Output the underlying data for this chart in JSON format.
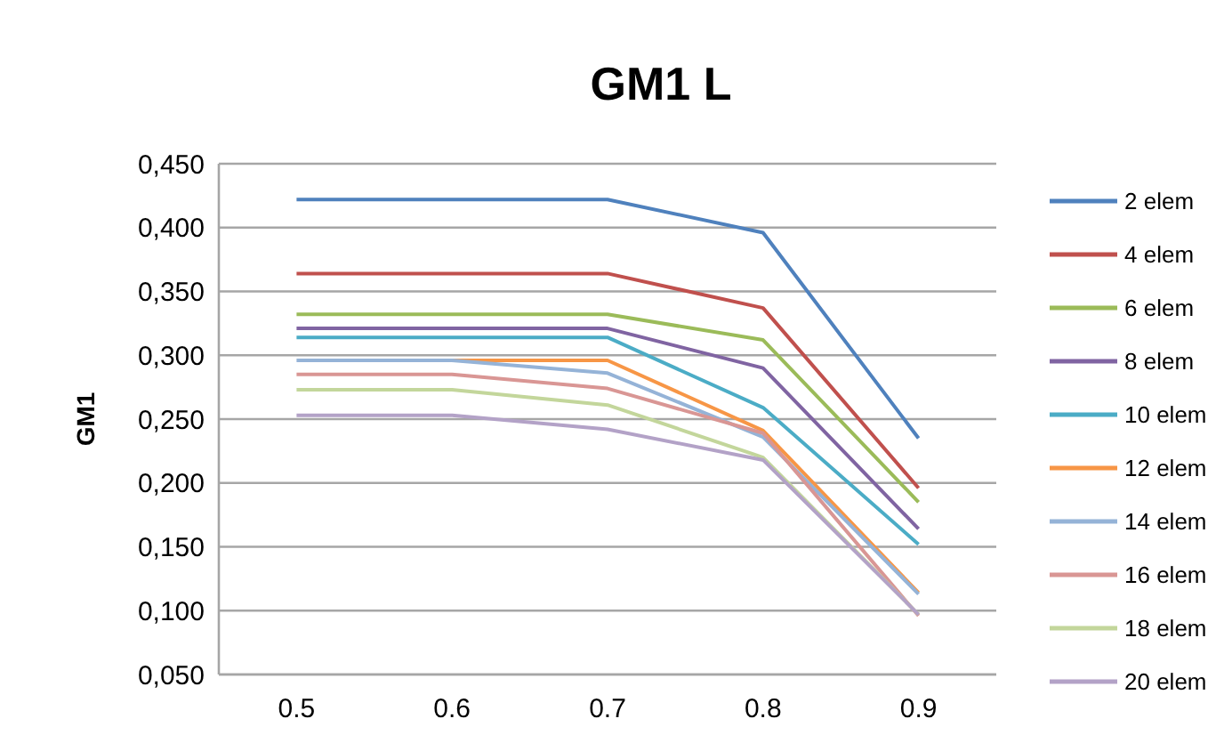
{
  "chart_data": {
    "type": "line",
    "title": "GM1 L",
    "ylabel": "GM1",
    "categories": [
      "0.5",
      "0.6",
      "0.7",
      "0.8",
      "0.9"
    ],
    "ylim": [
      0.05,
      0.45
    ],
    "yticks": [
      {
        "value": 0.05,
        "label": "0,050"
      },
      {
        "value": 0.1,
        "label": "0,100"
      },
      {
        "value": 0.15,
        "label": "0,150"
      },
      {
        "value": 0.2,
        "label": "0,200"
      },
      {
        "value": 0.25,
        "label": "0,250"
      },
      {
        "value": 0.3,
        "label": "0,300"
      },
      {
        "value": 0.35,
        "label": "0,350"
      },
      {
        "value": 0.4,
        "label": "0,400"
      },
      {
        "value": 0.45,
        "label": "0,450"
      }
    ],
    "grid": "y",
    "legend": "right",
    "marker": "none",
    "line_style": "solid",
    "series": [
      {
        "name": "2 elem",
        "color": "#4f81bd",
        "values": [
          0.422,
          0.422,
          0.422,
          0.396,
          0.235
        ]
      },
      {
        "name": "4 elem",
        "color": "#c0504d",
        "values": [
          0.364,
          0.364,
          0.364,
          0.337,
          0.196
        ]
      },
      {
        "name": "6 elem",
        "color": "#9bbb59",
        "values": [
          0.332,
          0.332,
          0.332,
          0.312,
          0.185
        ]
      },
      {
        "name": "8 elem",
        "color": "#8064a2",
        "values": [
          0.321,
          0.321,
          0.321,
          0.29,
          0.164
        ]
      },
      {
        "name": "10 elem",
        "color": "#4bacc6",
        "values": [
          0.314,
          0.314,
          0.314,
          0.259,
          0.152
        ]
      },
      {
        "name": "12 elem",
        "color": "#f79646",
        "values": [
          null,
          0.296,
          0.296,
          0.241,
          0.114
        ]
      },
      {
        "name": "14 elem",
        "color": "#95b3d7",
        "values": [
          0.296,
          0.296,
          0.286,
          0.236,
          0.113
        ]
      },
      {
        "name": "16 elem",
        "color": "#d99694",
        "values": [
          0.285,
          0.285,
          0.274,
          0.239,
          0.096
        ]
      },
      {
        "name": "18 elem",
        "color": "#c3d69b",
        "values": [
          0.273,
          0.273,
          0.261,
          0.22,
          0.097
        ]
      },
      {
        "name": "20 elem",
        "color": "#b3a2c7",
        "values": [
          0.253,
          0.253,
          0.242,
          0.218,
          0.097
        ]
      }
    ]
  }
}
